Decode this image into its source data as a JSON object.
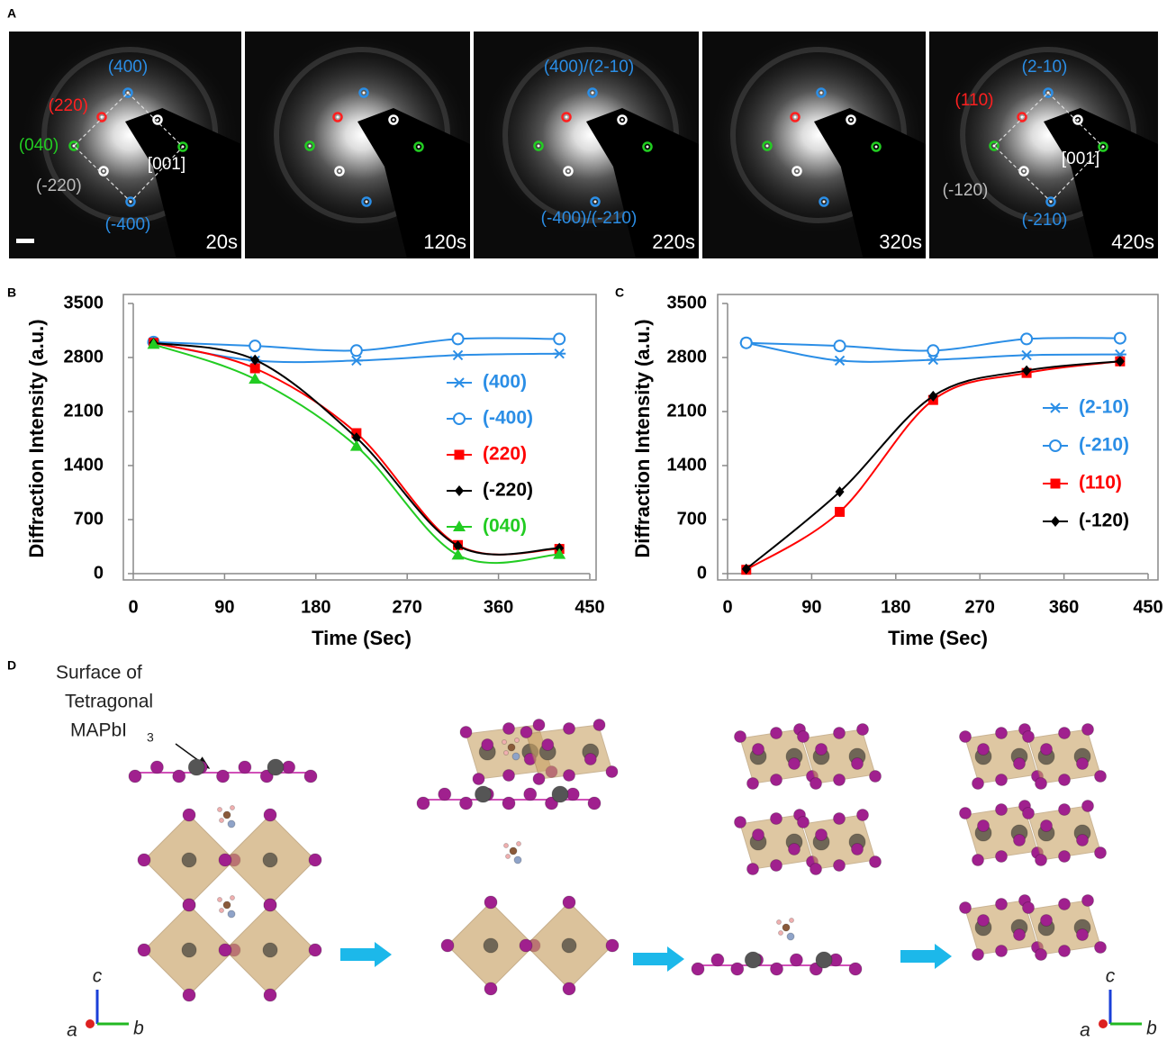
{
  "panel_labels": [
    "A",
    "B",
    "C",
    "D"
  ],
  "panel_a": {
    "frames": [
      {
        "time": "20s",
        "labels": [
          "(400)",
          "(220)",
          "(040)",
          "(-220)",
          "(-400)",
          "[001]"
        ]
      },
      {
        "time": "120s",
        "labels": []
      },
      {
        "time": "220s",
        "labels": [
          "(400)/(2-10)",
          "(-400)/(-210)"
        ]
      },
      {
        "time": "320s",
        "labels": []
      },
      {
        "time": "420s",
        "labels": [
          "(2-10)",
          "(110)",
          "[001]",
          "(-120)",
          "(-210)"
        ]
      }
    ]
  },
  "panel_d": {
    "caption_line1": "Surface of",
    "caption_line2": "Tetragonal",
    "formula": "MAPbI",
    "formula_subscript": "3",
    "axes_left": [
      "c",
      "a",
      "b"
    ],
    "axes_right": [
      "c",
      "a",
      "b"
    ]
  },
  "chart_data": [
    {
      "type": "line",
      "x_label": "Time (Sec)",
      "y_label": "Diffraction Intensity (a.u.)",
      "x": [
        20,
        120,
        220,
        320,
        420
      ],
      "xlim": [
        0,
        450
      ],
      "xticks": [
        0,
        90,
        180,
        270,
        360,
        450
      ],
      "ylim": [
        0,
        3500
      ],
      "yticks": [
        0,
        700,
        1400,
        2100,
        2800,
        3500
      ],
      "series": [
        {
          "name": "(400)",
          "color": "#2b8ee6",
          "marker": "asterisk",
          "values": [
            2990,
            2760,
            2760,
            2830,
            2850
          ]
        },
        {
          "name": "(-400)",
          "color": "#2b8ee6",
          "marker": "open-circle",
          "values": [
            3000,
            2950,
            2890,
            3040,
            3040
          ]
        },
        {
          "name": "(220)",
          "color": "#ff0000",
          "marker": "square",
          "values": [
            2990,
            2660,
            1820,
            370,
            320
          ]
        },
        {
          "name": "(-220)",
          "color": "#000000",
          "marker": "diamond",
          "values": [
            2990,
            2770,
            1760,
            360,
            330
          ]
        },
        {
          "name": "(040)",
          "color": "#22cc22",
          "marker": "triangle",
          "values": [
            2970,
            2520,
            1650,
            240,
            250
          ]
        }
      ]
    },
    {
      "type": "line",
      "x_label": "Time (Sec)",
      "y_label": "Diffraction Intensity (a.u.)",
      "x": [
        20,
        120,
        220,
        320,
        420
      ],
      "xlim": [
        0,
        450
      ],
      "xticks": [
        0,
        90,
        180,
        270,
        360,
        450
      ],
      "ylim": [
        0,
        3500
      ],
      "yticks": [
        0,
        700,
        1400,
        2100,
        2800,
        3500
      ],
      "series": [
        {
          "name": "(2-10)",
          "color": "#2b8ee6",
          "marker": "asterisk",
          "values": [
            2990,
            2760,
            2770,
            2830,
            2840
          ]
        },
        {
          "name": "(-210)",
          "color": "#2b8ee6",
          "marker": "open-circle",
          "values": [
            2990,
            2950,
            2890,
            3040,
            3050
          ]
        },
        {
          "name": "(110)",
          "color": "#ff0000",
          "marker": "square",
          "values": [
            50,
            800,
            2250,
            2600,
            2750
          ]
        },
        {
          "name": "(-120)",
          "color": "#000000",
          "marker": "diamond",
          "values": [
            60,
            1060,
            2300,
            2630,
            2750
          ]
        }
      ]
    }
  ]
}
